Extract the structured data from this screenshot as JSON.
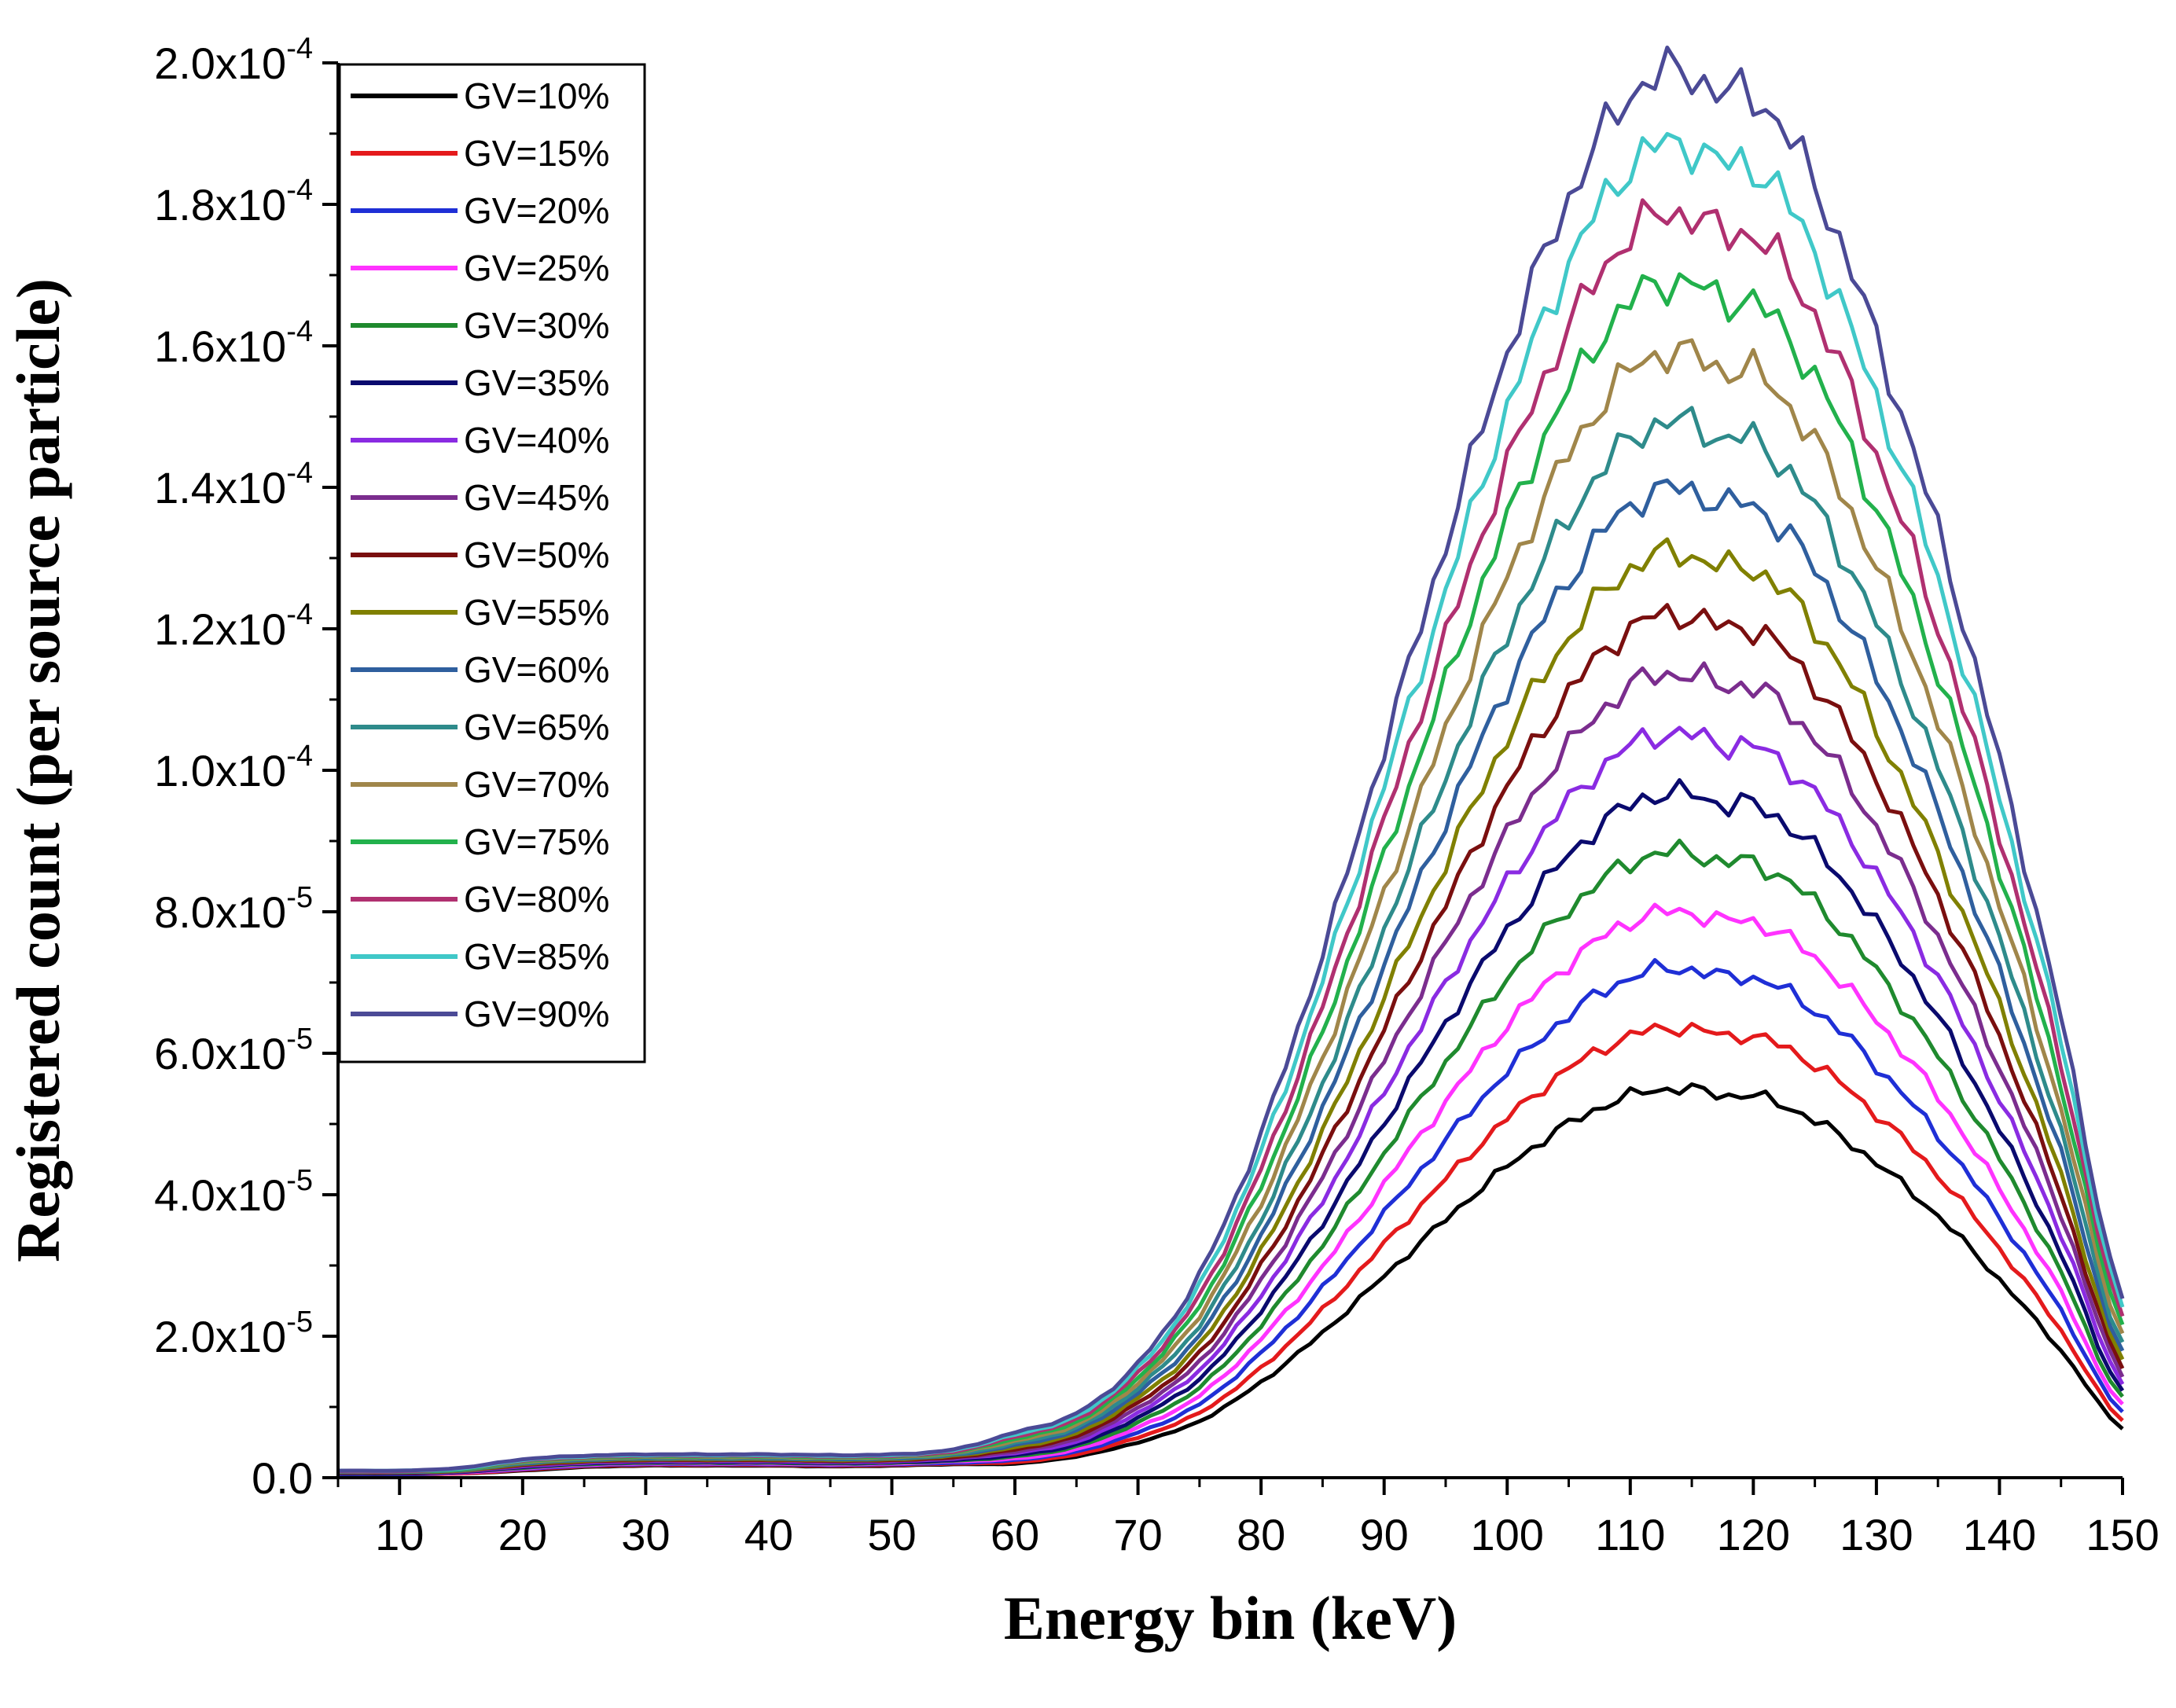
{
  "chart_data": {
    "type": "line",
    "title": "",
    "xlabel": "Energy bin (keV)",
    "ylabel": "Registered count (per source particle)",
    "xlim": [
      5,
      150
    ],
    "ylim": [
      0,
      0.0002
    ],
    "x_ticks": [
      10,
      20,
      30,
      40,
      50,
      60,
      70,
      80,
      90,
      100,
      110,
      120,
      130,
      140,
      150
    ],
    "x_tick_labels": [
      "10",
      "20",
      "30",
      "40",
      "50",
      "60",
      "70",
      "80",
      "90",
      "100",
      "110",
      "120",
      "130",
      "140",
      "150"
    ],
    "y_ticks": [
      0,
      2e-05,
      4e-05,
      6e-05,
      8e-05,
      0.0001,
      0.00012,
      0.00014,
      0.00016,
      0.00018,
      0.0002
    ],
    "y_tick_labels": [
      {
        "mantissa": "0.0",
        "exp": ""
      },
      {
        "mantissa": "2.0x10",
        "exp": "-5"
      },
      {
        "mantissa": "4.0x10",
        "exp": "-5"
      },
      {
        "mantissa": "6.0x10",
        "exp": "-5"
      },
      {
        "mantissa": "8.0x10",
        "exp": "-5"
      },
      {
        "mantissa": "1.0x10",
        "exp": "-4"
      },
      {
        "mantissa": "1.2x10",
        "exp": "-4"
      },
      {
        "mantissa": "1.4x10",
        "exp": "-4"
      },
      {
        "mantissa": "1.6x10",
        "exp": "-4"
      },
      {
        "mantissa": "1.8x10",
        "exp": "-4"
      },
      {
        "mantissa": "2.0x10",
        "exp": "-4"
      }
    ],
    "grid": false,
    "legend_position": "top-left",
    "x": [
      5,
      10,
      15,
      20,
      25,
      30,
      35,
      40,
      45,
      50,
      55,
      60,
      65,
      70,
      75,
      80,
      85,
      90,
      95,
      100,
      105,
      110,
      114,
      118,
      120,
      125,
      130,
      135,
      140,
      145,
      150
    ],
    "series": [
      {
        "name": "GV=10%",
        "color": "#000000",
        "values": [
          5e-07,
          5e-07,
          6e-07,
          1e-06,
          1.5e-06,
          1.7e-06,
          1.7e-06,
          1.7e-06,
          1.6e-06,
          1.7e-06,
          1.9e-06,
          2e-06,
          3e-06,
          5e-06,
          8e-06,
          1.35e-05,
          2.05e-05,
          2.85e-05,
          3.65e-05,
          4.4e-05,
          5e-05,
          5.4e-05,
          5.5e-05,
          5.4e-05,
          5.4e-05,
          5.05e-05,
          4.45e-05,
          3.7e-05,
          2.8e-05,
          1.8e-05,
          7e-06
        ]
      },
      {
        "name": "GV=15%",
        "color": "#e41a1c",
        "values": [
          5e-07,
          5e-07,
          6e-07,
          1.1e-06,
          1.6e-06,
          1.8e-06,
          1.8e-06,
          1.8e-06,
          1.7e-06,
          1.8e-06,
          2e-06,
          2.2e-06,
          3.3e-06,
          5.7e-06,
          9.2e-06,
          1.55e-05,
          2.37e-05,
          3.3e-05,
          4.22e-05,
          5.08e-05,
          5.78e-05,
          6.24e-05,
          6.36e-05,
          6.24e-05,
          6.24e-05,
          5.84e-05,
          5.14e-05,
          4.28e-05,
          3.24e-05,
          2.08e-05,
          8.1e-06
        ]
      },
      {
        "name": "GV=20%",
        "color": "#1f2fd6",
        "values": [
          5e-07,
          5e-07,
          7e-07,
          1.2e-06,
          1.7e-06,
          1.9e-06,
          1.9e-06,
          1.9e-06,
          1.8e-06,
          1.9e-06,
          2.1e-06,
          2.5e-06,
          3.7e-06,
          6.4e-06,
          1.04e-05,
          1.76e-05,
          2.68e-05,
          3.73e-05,
          4.77e-05,
          5.75e-05,
          6.54e-05,
          7.07e-05,
          7.2e-05,
          7.07e-05,
          7.07e-05,
          6.61e-05,
          5.82e-05,
          4.84e-05,
          3.67e-05,
          2.36e-05,
          9.2e-06
        ]
      },
      {
        "name": "GV=25%",
        "color": "#ff33ff",
        "values": [
          6e-07,
          6e-07,
          7e-07,
          1.3e-06,
          1.8e-06,
          2e-06,
          2e-06,
          2e-06,
          1.9e-06,
          2e-06,
          2.3e-06,
          2.7e-06,
          4e-06,
          7.1e-06,
          1.16e-05,
          1.96e-05,
          2.98e-05,
          4.15e-05,
          5.31e-05,
          6.4e-05,
          7.27e-05,
          7.86e-05,
          8e-05,
          7.86e-05,
          7.86e-05,
          7.35e-05,
          6.47e-05,
          5.38e-05,
          4.08e-05,
          2.62e-05,
          1.02e-05
        ]
      },
      {
        "name": "GV=30%",
        "color": "#1f8a2e",
        "values": [
          6e-07,
          6e-07,
          8e-07,
          1.4e-06,
          1.9e-06,
          2.1e-06,
          2.1e-06,
          2.1e-06,
          2e-06,
          2.1e-06,
          2.4e-06,
          3e-06,
          4.4e-06,
          7.8e-06,
          1.28e-05,
          2.16e-05,
          3.3e-05,
          4.59e-05,
          5.87e-05,
          7.07e-05,
          8.04e-05,
          8.69e-05,
          8.85e-05,
          8.69e-05,
          8.69e-05,
          8.13e-05,
          7.16e-05,
          5.95e-05,
          4.51e-05,
          2.9e-05,
          1.13e-05
        ]
      },
      {
        "name": "GV=35%",
        "color": "#0a0a6e",
        "values": [
          6e-07,
          6e-07,
          8e-07,
          1.5e-06,
          2e-06,
          2.2e-06,
          2.2e-06,
          2.2e-06,
          2.1e-06,
          2.2e-06,
          2.5e-06,
          3.2e-06,
          4.7e-06,
          8.5e-06,
          1.4e-05,
          2.37e-05,
          3.61e-05,
          5.02e-05,
          6.42e-05,
          7.74e-05,
          8.8e-05,
          9.51e-05,
          9.68e-05,
          9.51e-05,
          9.51e-05,
          8.89e-05,
          7.83e-05,
          6.51e-05,
          4.93e-05,
          3.17e-05,
          1.23e-05
        ]
      },
      {
        "name": "GV=40%",
        "color": "#8a2be2",
        "values": [
          7e-07,
          7e-07,
          9e-07,
          1.6e-06,
          2.1e-06,
          2.3e-06,
          2.3e-06,
          2.3e-06,
          2.2e-06,
          2.3e-06,
          2.7e-06,
          3.5e-06,
          5.1e-06,
          9.2e-06,
          1.52e-05,
          2.58e-05,
          3.93e-05,
          5.46e-05,
          6.98e-05,
          8.41e-05,
          9.56e-05,
          0.0001034,
          0.0001052,
          0.0001034,
          0.0001034,
          9.67e-05,
          8.51e-05,
          7.08e-05,
          5.36e-05,
          3.45e-05,
          1.34e-05
        ]
      },
      {
        "name": "GV=45%",
        "color": "#7b2d8e",
        "values": [
          7e-07,
          7e-07,
          9e-07,
          1.7e-06,
          2.2e-06,
          2.4e-06,
          2.4e-06,
          2.4e-06,
          2.3e-06,
          2.4e-06,
          2.8e-06,
          3.7e-06,
          5.5e-06,
          9.9e-06,
          1.64e-05,
          2.79e-05,
          4.25e-05,
          5.9e-05,
          7.55e-05,
          9.09e-05,
          0.0001034,
          0.0001118,
          0.0001137,
          0.0001118,
          0.0001118,
          0.0001045,
          9.2e-05,
          7.65e-05,
          5.8e-05,
          3.73e-05,
          1.45e-05
        ]
      },
      {
        "name": "GV=50%",
        "color": "#7a0f0f",
        "values": [
          7e-07,
          7e-07,
          1e-06,
          1.8e-06,
          2.3e-06,
          2.5e-06,
          2.5e-06,
          2.5e-06,
          2.4e-06,
          2.5e-06,
          2.9e-06,
          4e-06,
          5.9e-06,
          1.06e-05,
          1.76e-05,
          2.99e-05,
          4.56e-05,
          6.34e-05,
          8.1e-05,
          9.76e-05,
          0.000111,
          0.00012,
          0.000122,
          0.00012,
          0.00012,
          0.0001122,
          9.88e-05,
          8.21e-05,
          6.23e-05,
          4e-05,
          1.56e-05
        ]
      },
      {
        "name": "GV=55%",
        "color": "#808000",
        "values": [
          8e-07,
          8e-07,
          1e-06,
          1.9e-06,
          2.4e-06,
          2.6e-06,
          2.6e-06,
          2.6e-06,
          2.5e-06,
          2.6e-06,
          3.1e-06,
          4.3e-06,
          6.3e-06,
          1.13e-05,
          1.89e-05,
          3.2e-05,
          4.88e-05,
          6.79e-05,
          8.68e-05,
          0.0001046,
          0.0001189,
          0.0001285,
          0.0001307,
          0.0001285,
          0.0001285,
          0.0001202,
          0.0001058,
          8.8e-05,
          6.67e-05,
          4.28e-05,
          1.67e-05
        ]
      },
      {
        "name": "GV=60%",
        "color": "#2f5f9e",
        "values": [
          8e-07,
          8e-07,
          1.1e-06,
          2e-06,
          2.5e-06,
          2.7e-06,
          2.7e-06,
          2.7e-06,
          2.6e-06,
          2.7e-06,
          3.2e-06,
          4.6e-06,
          6.7e-06,
          1.2e-05,
          2.02e-05,
          3.42e-05,
          5.22e-05,
          7.26e-05,
          9.28e-05,
          0.0001118,
          0.0001271,
          0.0001374,
          0.0001398,
          0.0001374,
          0.0001374,
          0.0001285,
          0.0001131,
          9.41e-05,
          7.13e-05,
          4.58e-05,
          1.78e-05
        ]
      },
      {
        "name": "GV=65%",
        "color": "#2e8b8b",
        "values": [
          8e-07,
          8e-07,
          1.1e-06,
          2.1e-06,
          2.6e-06,
          2.8e-06,
          2.8e-06,
          2.8e-06,
          2.7e-06,
          2.8e-06,
          3.3e-06,
          4.9e-06,
          7.1e-06,
          1.27e-05,
          2.16e-05,
          3.65e-05,
          5.57e-05,
          7.75e-05,
          9.91e-05,
          0.0001194,
          0.0001357,
          0.0001467,
          0.0001493,
          0.0001467,
          0.0001467,
          0.0001372,
          0.0001208,
          0.0001004,
          7.61e-05,
          4.89e-05,
          1.9e-05
        ]
      },
      {
        "name": "GV=70%",
        "color": "#a0864a",
        "values": [
          9e-07,
          9e-07,
          1.2e-06,
          2.2e-06,
          2.7e-06,
          2.9e-06,
          2.9e-06,
          2.9e-06,
          2.8e-06,
          2.9e-06,
          3.5e-06,
          5.2e-06,
          7.5e-06,
          1.34e-05,
          2.3e-05,
          3.89e-05,
          5.94e-05,
          8.26e-05,
          0.0001057,
          0.0001273,
          0.0001447,
          0.0001564,
          0.0001591,
          0.0001564,
          0.0001564,
          0.0001463,
          0.0001288,
          0.0001071,
          8.12e-05,
          5.21e-05,
          2.03e-05
        ]
      },
      {
        "name": "GV=75%",
        "color": "#22b14c",
        "values": [
          9e-07,
          9e-07,
          1.2e-06,
          2.3e-06,
          2.8e-06,
          3e-06,
          3e-06,
          3e-06,
          2.9e-06,
          3e-06,
          3.6e-06,
          5.5e-06,
          7.9e-06,
          1.41e-05,
          2.44e-05,
          4.13e-05,
          6.31e-05,
          8.78e-05,
          0.0001123,
          0.0001353,
          0.0001538,
          0.0001662,
          0.0001691,
          0.0001662,
          0.0001662,
          0.0001555,
          0.0001369,
          0.0001138,
          8.63e-05,
          5.54e-05,
          2.16e-05
        ]
      },
      {
        "name": "GV=80%",
        "color": "#b03070",
        "values": [
          9e-07,
          9e-07,
          1.3e-06,
          2.4e-06,
          2.9e-06,
          3.1e-06,
          3.1e-06,
          3.1e-06,
          3e-06,
          3.1e-06,
          3.7e-06,
          5.8e-06,
          8.3e-06,
          1.48e-05,
          2.58e-05,
          4.37e-05,
          6.67e-05,
          9.28e-05,
          0.0001187,
          0.000143,
          0.0001626,
          0.0001757,
          0.0001788,
          0.0001757,
          0.0001757,
          0.0001644,
          0.0001447,
          0.0001203,
          9.12e-05,
          5.86e-05,
          2.28e-05
        ]
      },
      {
        "name": "GV=85%",
        "color": "#40c8c8",
        "values": [
          1e-06,
          1e-06,
          1.3e-06,
          2.5e-06,
          3e-06,
          3.2e-06,
          3.2e-06,
          3.2e-06,
          3.1e-06,
          3.2e-06,
          3.9e-06,
          6.1e-06,
          8.7e-06,
          1.55e-05,
          2.72e-05,
          4.61e-05,
          7.04e-05,
          9.79e-05,
          0.0001252,
          0.0001509,
          0.0001715,
          0.0001854,
          0.0001886,
          0.0001854,
          0.0001854,
          0.0001734,
          0.0001527,
          0.000127,
          9.62e-05,
          6.18e-05,
          2.41e-05
        ]
      },
      {
        "name": "GV=90%",
        "color": "#4b4a96",
        "values": [
          1e-06,
          1e-06,
          1.4e-06,
          2.6e-06,
          3.1e-06,
          3.3e-06,
          3.3e-06,
          3.3e-06,
          3.2e-06,
          3.3e-06,
          4e-06,
          6.4e-06,
          9.1e-06,
          1.62e-05,
          2.87e-05,
          4.86e-05,
          7.42e-05,
          0.0001032,
          0.000132,
          0.0001591,
          0.0001808,
          0.0001954,
          0.0001988,
          0.0001954,
          0.0001954,
          0.0001828,
          0.0001609,
          0.0001338,
          0.0001014,
          6.51e-05,
          2.54e-05
        ]
      }
    ]
  }
}
